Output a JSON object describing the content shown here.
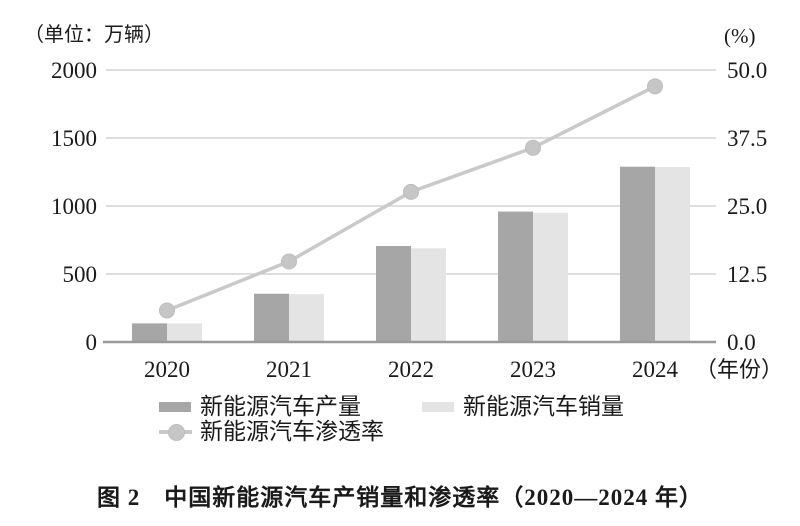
{
  "caption": "图 2　中国新能源汽车产销量和渗透率（2020—2024 年）",
  "chart_data": {
    "type": "bar+line combo",
    "title": "中国新能源汽车产销量和渗透率（2020—2024 年）",
    "categories": [
      "2020",
      "2021",
      "2022",
      "2023",
      "2024"
    ],
    "x_axis_suffix": "（年份）",
    "left_axis": {
      "label": "（单位：万辆）",
      "min": 0,
      "max": 2000,
      "ticks": [
        "2000",
        "1500",
        "1000",
        "500",
        "0"
      ]
    },
    "right_axis": {
      "label": "(%)",
      "min": 0,
      "max": 50,
      "ticks": [
        "50.0",
        "37.5",
        "25.0",
        "12.5",
        "0.0"
      ]
    },
    "grid": true,
    "legend_position": "bottom",
    "series": [
      {
        "name": "新能源汽车产量",
        "type": "bar",
        "axis": "left",
        "color": "#a6a6a6",
        "values": [
          137,
          355,
          706,
          959,
          1289
        ]
      },
      {
        "name": "新能源汽车销量",
        "type": "bar",
        "axis": "left",
        "color": "#e4e4e4",
        "values": [
          137,
          352,
          689,
          950,
          1287
        ]
      },
      {
        "name": "新能源汽车渗透率",
        "type": "line",
        "axis": "right",
        "color": "#c9c9c9",
        "marker_color": "#c6c6c6",
        "values": [
          5.8,
          14.8,
          27.6,
          35.7,
          47.0
        ]
      }
    ],
    "colors": {
      "grid": "#c9c9c9",
      "axis": "#999999",
      "text": "#1a1a1a"
    }
  }
}
